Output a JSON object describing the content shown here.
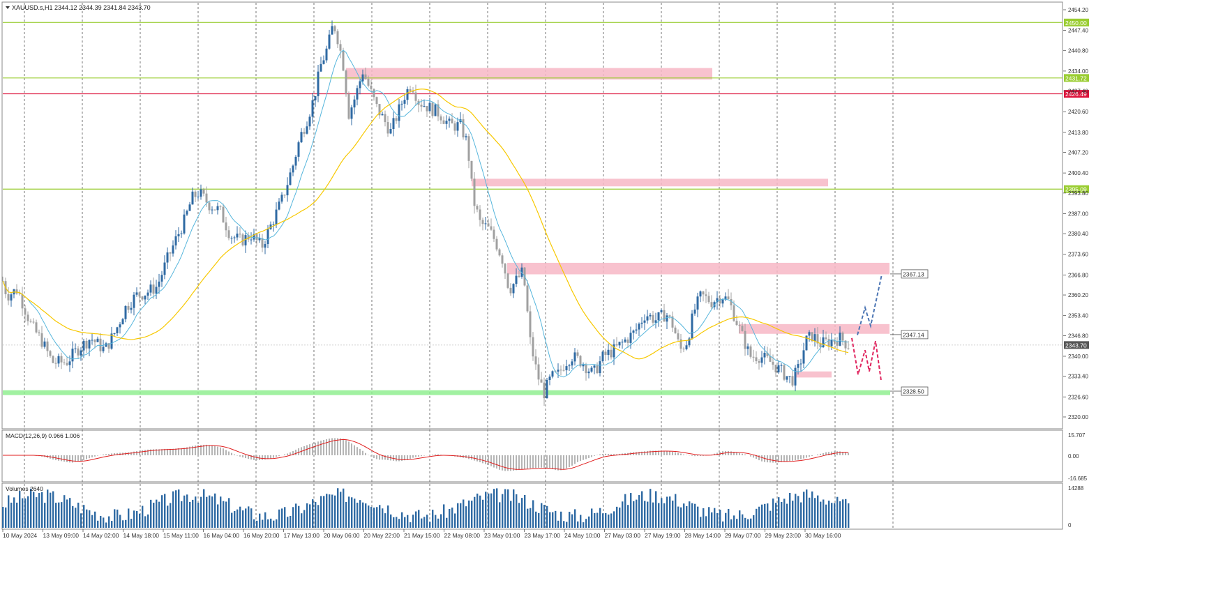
{
  "window": {
    "symbol_header": "XAUUSD.s,H1  2344.12 2344.39 2341.84 2343.70"
  },
  "colors": {
    "bull_candle": "#2f6aa3",
    "bear_candle": "#a0a0a0",
    "ma_fast": "#57b6dc",
    "ma_slow": "#f7c800",
    "level_green": "#9acd32",
    "level_red": "#dc143c",
    "zone_pink": "#f7b7c6",
    "zone_green": "#90ee90",
    "macd_signal": "#e01e1e",
    "volume_bar": "#2f6aa3"
  },
  "price_axis": {
    "ticks": [
      "2454.20",
      "2447.40",
      "2440.80",
      "2434.00",
      "2427.40",
      "2420.60",
      "2413.80",
      "2407.20",
      "2400.40",
      "2393.80",
      "2387.00",
      "2380.40",
      "2373.60",
      "2366.80",
      "2360.20",
      "2353.40",
      "2346.80",
      "2340.00",
      "2333.40",
      "2326.60",
      "2320.00"
    ],
    "range": [
      2320.0,
      2454.2
    ]
  },
  "levels": [
    {
      "price": 2450.0,
      "label": "2450.00",
      "color": "#9acd32",
      "label_bg": "#9acd32"
    },
    {
      "price": 2431.72,
      "label": "2431.72",
      "color": "#9acd32",
      "label_bg": "#9acd32"
    },
    {
      "price": 2426.49,
      "label": "2426.49",
      "color": "#dc143c",
      "label_bg": "#dc143c"
    },
    {
      "price": 2395.09,
      "label": "2395.09",
      "color": "#9acd32",
      "label_bg": "#9acd32"
    }
  ],
  "current_price": {
    "price": 2343.7,
    "label": "2343.70"
  },
  "callouts": [
    {
      "label": "2367.13"
    },
    {
      "label": "2347.14"
    },
    {
      "label": "2328.50"
    }
  ],
  "macd": {
    "title": "MACD(12,26,9) 0.966 1.006",
    "ticks": [
      "15.707",
      "0.00",
      "-16.685"
    ]
  },
  "volumes": {
    "title": "Volumes 2640",
    "ticks": [
      "14288",
      "0"
    ]
  },
  "time_axis": {
    "labels": [
      "10 May 2024",
      "13 May 09:00",
      "14 May 02:00",
      "14 May 18:00",
      "15 May 11:00",
      "16 May 04:00",
      "16 May 20:00",
      "17 May 13:00",
      "20 May 06:00",
      "20 May 22:00",
      "21 May 15:00",
      "22 May 08:00",
      "23 May 01:00",
      "23 May 17:00",
      "24 May 10:00",
      "27 May 03:00",
      "27 May 19:00",
      "28 May 14:00",
      "29 May 07:00",
      "29 May 23:00",
      "30 May 16:00"
    ]
  },
  "chart_data": {
    "type": "candlestick",
    "symbol": "XAUUSD.s",
    "timeframe": "H1",
    "ylim": [
      2320.0,
      2454.2
    ],
    "close_path": [
      [
        0,
        2368
      ],
      [
        10,
        2360
      ],
      [
        25,
        2362
      ],
      [
        45,
        2350
      ],
      [
        60,
        2345
      ],
      [
        75,
        2338
      ],
      [
        95,
        2338
      ],
      [
        110,
        2342
      ],
      [
        130,
        2346
      ],
      [
        150,
        2342
      ],
      [
        165,
        2348
      ],
      [
        180,
        2356
      ],
      [
        195,
        2360
      ],
      [
        210,
        2361
      ],
      [
        225,
        2363
      ],
      [
        240,
        2372
      ],
      [
        255,
        2380
      ],
      [
        265,
        2385
      ],
      [
        275,
        2392
      ],
      [
        285,
        2394
      ],
      [
        300,
        2390
      ],
      [
        315,
        2388
      ],
      [
        330,
        2380
      ],
      [
        345,
        2378
      ],
      [
        360,
        2380
      ],
      [
        375,
        2376
      ],
      [
        390,
        2384
      ],
      [
        405,
        2392
      ],
      [
        420,
        2403
      ],
      [
        430,
        2412
      ],
      [
        440,
        2418
      ],
      [
        450,
        2425
      ],
      [
        460,
        2436
      ],
      [
        470,
        2442
      ],
      [
        478,
        2450
      ],
      [
        485,
        2444
      ],
      [
        492,
        2436
      ],
      [
        500,
        2420
      ],
      [
        510,
        2426
      ],
      [
        520,
        2434
      ],
      [
        530,
        2428
      ],
      [
        540,
        2422
      ],
      [
        550,
        2418
      ],
      [
        560,
        2414
      ],
      [
        570,
        2420
      ],
      [
        580,
        2426
      ],
      [
        590,
        2430
      ],
      [
        600,
        2424
      ],
      [
        615,
        2422
      ],
      [
        630,
        2420
      ],
      [
        645,
        2416
      ],
      [
        660,
        2416
      ],
      [
        670,
        2410
      ],
      [
        678,
        2392
      ],
      [
        688,
        2384
      ],
      [
        700,
        2382
      ],
      [
        710,
        2378
      ],
      [
        720,
        2372
      ],
      [
        730,
        2362
      ],
      [
        740,
        2365
      ],
      [
        750,
        2368
      ],
      [
        760,
        2345
      ],
      [
        770,
        2334
      ],
      [
        780,
        2328
      ],
      [
        790,
        2333
      ],
      [
        800,
        2334
      ],
      [
        810,
        2338
      ],
      [
        820,
        2340
      ],
      [
        835,
        2338
      ],
      [
        850,
        2334
      ],
      [
        865,
        2340
      ],
      [
        880,
        2342
      ],
      [
        895,
        2345
      ],
      [
        910,
        2348
      ],
      [
        925,
        2354
      ],
      [
        940,
        2352
      ],
      [
        955,
        2354
      ],
      [
        965,
        2350
      ],
      [
        975,
        2342
      ],
      [
        985,
        2345
      ],
      [
        995,
        2355
      ],
      [
        1005,
        2360
      ],
      [
        1020,
        2358
      ],
      [
        1035,
        2360
      ],
      [
        1045,
        2358
      ],
      [
        1055,
        2352
      ],
      [
        1065,
        2346
      ],
      [
        1075,
        2340
      ],
      [
        1090,
        2340
      ],
      [
        1105,
        2338
      ],
      [
        1120,
        2335
      ],
      [
        1135,
        2332
      ],
      [
        1145,
        2336
      ],
      [
        1155,
        2345
      ],
      [
        1165,
        2347
      ],
      [
        1175,
        2344
      ],
      [
        1190,
        2345
      ],
      [
        1205,
        2346
      ],
      [
        1215,
        2343.7
      ]
    ]
  }
}
